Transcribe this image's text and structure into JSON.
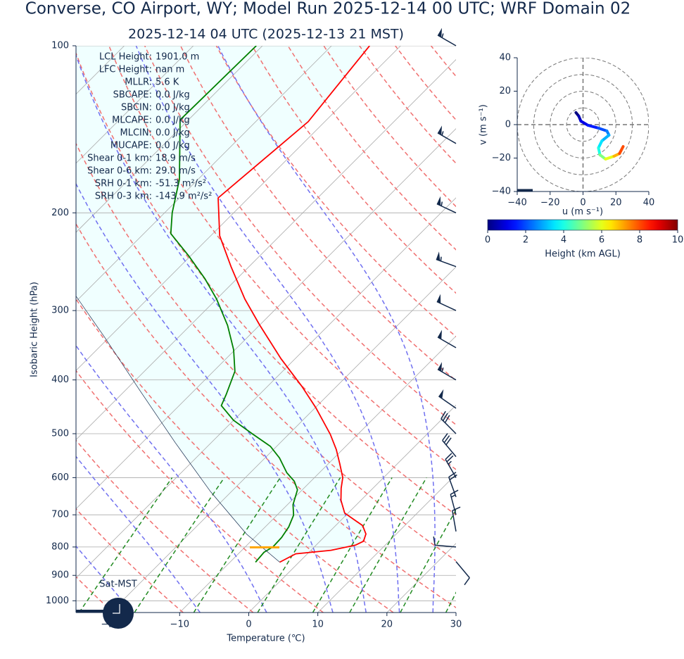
{
  "chart_data": [
    {
      "type": "skewt",
      "title": "Converse, CO Airport, WY; Model Run 2025-12-14 00 UTC; WRF Domain 02",
      "subtitle": "2025-12-14 04 UTC  (2025-12-13 21 MST)",
      "xlabel": "Temperature (℃)",
      "ylabel": "Isobaric Height (hPa)",
      "xlim": [
        -25,
        30
      ],
      "ylim": [
        1050,
        100
      ],
      "log_y": true,
      "grid": true,
      "xticks": [
        {
          "value": -20,
          "label": "−20"
        },
        {
          "value": -10,
          "label": "−10"
        },
        0,
        10,
        20,
        30
      ],
      "yticks": [
        100,
        200,
        300,
        400,
        500,
        600,
        700,
        800,
        900,
        1000
      ],
      "series": [
        {
          "color": "#ff0000",
          "pressure": [
            852,
            823,
            811,
            794,
            781,
            758,
            732,
            695,
            659,
            627,
            600,
            567,
            534,
            501,
            449,
            411,
            366,
            318,
            286,
            250,
            220,
            188,
            137,
            100
          ],
          "values": [
            -2.8,
            -1.7,
            2.9,
            5.7,
            6.3,
            5.6,
            3.9,
            -0.5,
            -2.9,
            -4.6,
            -5.9,
            -8.3,
            -10.9,
            -14.0,
            -19.9,
            -25.0,
            -32.1,
            -40.1,
            -45.9,
            -52.6,
            -58.7,
            -64.4,
            -62.4,
            -64.5
          ]
        },
        {
          "color": "#008000",
          "pressure": [
            852,
            818,
            799,
            769,
            736,
            701,
            671,
            631,
            609,
            588,
            553,
            527,
            501,
            473,
            445,
            425,
            386,
            353,
            319,
            286,
            263,
            239,
            218,
            200,
            174,
            136,
            100
          ],
          "values": [
            -6.3,
            -6.5,
            -6.0,
            -6.1,
            -6.6,
            -7.6,
            -9.2,
            -10.7,
            -12.4,
            -14.7,
            -17.9,
            -20.9,
            -25.2,
            -30.0,
            -33.9,
            -34.8,
            -36.9,
            -40.2,
            -44.6,
            -50.0,
            -54.6,
            -60.3,
            -66.1,
            -68.9,
            -72.7,
            -81.2,
            -80.9
          ]
        },
        {
          "color": "#13294b",
          "line_width": 0.7,
          "pressure": [
            852,
            758,
            636,
            519,
            417,
            335,
            281
          ],
          "values": [
            -2.8,
            -11.7,
            -23.0,
            -35.2,
            -48.0,
            -60.7,
            -71.1
          ]
        }
      ],
      "lcl_pressure": 801,
      "lcl_color": "#ffa500",
      "barbs": {
        "color": "#13294b",
        "pressure": [
          100,
          150,
          200,
          250,
          300,
          350,
          400,
          450,
          500,
          550,
          600,
          650,
          700,
          750,
          800,
          850
        ],
        "direction": [
          300,
          300,
          295,
          290,
          295,
          300,
          300,
          305,
          315,
          320,
          330,
          340,
          345,
          350,
          275,
          140
        ],
        "speed": [
          55,
          55,
          55,
          55,
          50,
          50,
          55,
          50,
          30,
          30,
          25,
          20,
          15,
          10,
          10,
          10
        ]
      },
      "stats": [
        {
          "label": "LCL Height:",
          "value": "1901.0 m"
        },
        {
          "label": "LFC Height:",
          "value": "nan m"
        },
        {
          "label": "MLLR:",
          "value": "5.6 K"
        },
        {
          "label": "SBCAPE:",
          "value": "0.0 J/kg"
        },
        {
          "label": "SBCIN:",
          "value": "0.0 J/kg"
        },
        {
          "label": "MLCAPE:",
          "value": "0.0 J/kg"
        },
        {
          "label": "MLCIN:",
          "value": "0.0 J/kg"
        },
        {
          "label": "MUCAPE:",
          "value": "0.0 J/kg"
        },
        {
          "label": "Shear 0-1 km:",
          "value": "18.9 m/s"
        },
        {
          "label": "Shear 0-6 km:",
          "value": "29.0 m/s"
        },
        {
          "label": "SRH 0-1 km:",
          "value": "-51.3 m²/s²"
        },
        {
          "label": "SRH 0-3 km:",
          "value": "-143.9 m²/s²"
        }
      ],
      "station_label": "Sat-MST"
    },
    {
      "type": "hodograph",
      "xlabel": "u (m s⁻¹)",
      "ylabel": "v (m s⁻¹)",
      "xlim": [
        -40,
        40
      ],
      "ylim": [
        -40,
        40
      ],
      "xticks": [
        {
          "value": -40,
          "label": "−40"
        },
        {
          "value": -20,
          "label": "−20"
        },
        0,
        20,
        40
      ],
      "yticks": [
        {
          "value": -40,
          "label": "−40"
        },
        {
          "value": -20,
          "label": "−20"
        },
        0,
        20,
        40
      ],
      "u": [
        -4.3,
        -2.6,
        -1.3,
        3.0,
        9.4,
        14.5,
        15.8,
        11.5,
        9.4,
        10.3,
        13.7,
        18.8,
        22.2,
        24.4
      ],
      "v": [
        7.2,
        5.1,
        2.1,
        -0.4,
        -2.1,
        -3.8,
        -6.3,
        -9.7,
        -13.9,
        -18.1,
        -20.6,
        -18.9,
        -17.3,
        -13.1
      ],
      "height": [
        0,
        0.5,
        1,
        1.5,
        2,
        2.5,
        3,
        3.5,
        4,
        5,
        6,
        7,
        8,
        9.5
      ],
      "colorbar": {
        "label": "Height (km AGL)",
        "clim": [
          0,
          10
        ],
        "ticks": [
          0,
          2,
          4,
          6,
          8,
          10
        ]
      }
    }
  ]
}
